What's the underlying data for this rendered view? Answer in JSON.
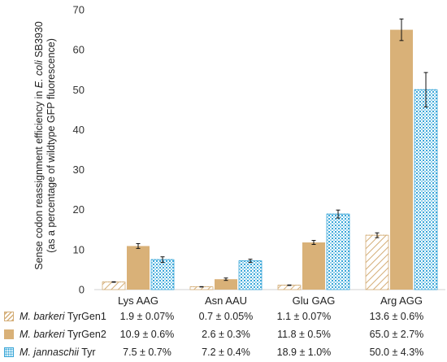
{
  "chart_data": {
    "type": "bar",
    "categories": [
      "Lys AAG",
      "Asn AAU",
      "Glu GAG",
      "Arg AGG"
    ],
    "ylabel_lines": [
      "Sense codon reassignment efficiency in E. coli SB3930",
      "(as a percentage of wildtype GFP fluorescence)"
    ],
    "ylim": [
      0,
      70
    ],
    "yticks": [
      0,
      10,
      20,
      30,
      40,
      50,
      60,
      70
    ],
    "grid": false,
    "legend_placement": "bottom-table",
    "series": [
      {
        "genus": "M. barkeri",
        "variant": "TyrGen1",
        "values": [
          1.9,
          0.7,
          1.1,
          13.6
        ],
        "errors": [
          0.07,
          0.05,
          0.07,
          0.6
        ],
        "cells": [
          "1.9 ± 0.07%",
          "0.7 ± 0.05%",
          "1.1 ± 0.07%",
          "13.6 ± 0.6%"
        ],
        "color": "#d9b98a",
        "pattern": "diagonal-hatch"
      },
      {
        "genus": "M. barkeri",
        "variant": "TyrGen2",
        "values": [
          10.9,
          2.6,
          11.8,
          65.0
        ],
        "errors": [
          0.6,
          0.3,
          0.5,
          2.7
        ],
        "cells": [
          "10.9 ± 0.6%",
          "2.6 ± 0.3%",
          "11.8 ± 0.5%",
          "65.0 ± 2.7%"
        ],
        "color": "#d9b178",
        "pattern": "solid"
      },
      {
        "genus": "M. jannaschii",
        "variant": "Tyr",
        "values": [
          7.5,
          7.2,
          18.9,
          50.0
        ],
        "errors": [
          0.7,
          0.4,
          1.0,
          4.3
        ],
        "cells": [
          "7.5 ± 0.7%",
          "7.2 ± 0.4%",
          "18.9 ± 1.0%",
          "50.0 ± 4.3%"
        ],
        "color": "#3aa6d8",
        "pattern": "dotted-grid"
      }
    ]
  }
}
